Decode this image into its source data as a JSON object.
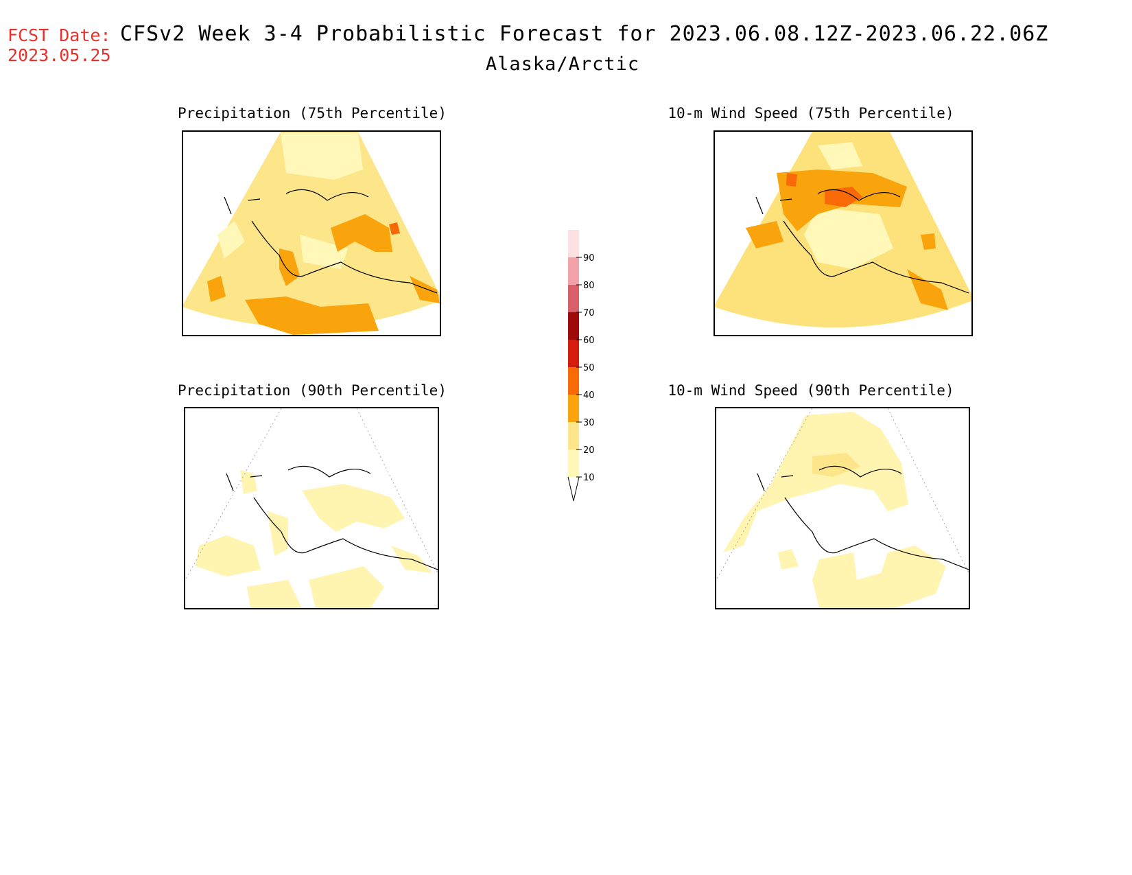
{
  "header": {
    "fcst_label": "FCST Date:",
    "fcst_date": "2023.05.25",
    "title": "CFSv2 Week 3-4 Probabilistic Forecast for 2023.06.08.12Z-2023.06.22.06Z",
    "region": "Alaska/Arctic"
  },
  "panels": [
    {
      "title": "Precipitation (75th Percentile)",
      "base": "#fde58a"
    },
    {
      "title": "10-m Wind Speed (75th Percentile)",
      "base": "#fde27c"
    },
    {
      "title": "Precipitation (90th Percentile)",
      "base": "#ffffff"
    },
    {
      "title": "10-m Wind Speed (90th Percentile)",
      "base": "#ffffff"
    }
  ],
  "colorbar": {
    "levels": [
      "10",
      "20",
      "30",
      "40",
      "50",
      "60",
      "70",
      "80",
      "90"
    ],
    "colors": [
      "#fff8b8",
      "#fde58a",
      "#f9a40c",
      "#f76a07",
      "#d61c0c",
      "#a0090a",
      "#d8606a",
      "#f2a2a8",
      "#fde0e2"
    ]
  },
  "colors": {
    "fcst_red": "#e8302c",
    "light_yellow": "#fff8b8",
    "yellow": "#fde58a",
    "orange": "#f9a40c",
    "dark_orange": "#f76a07",
    "red": "#d61c0c"
  }
}
